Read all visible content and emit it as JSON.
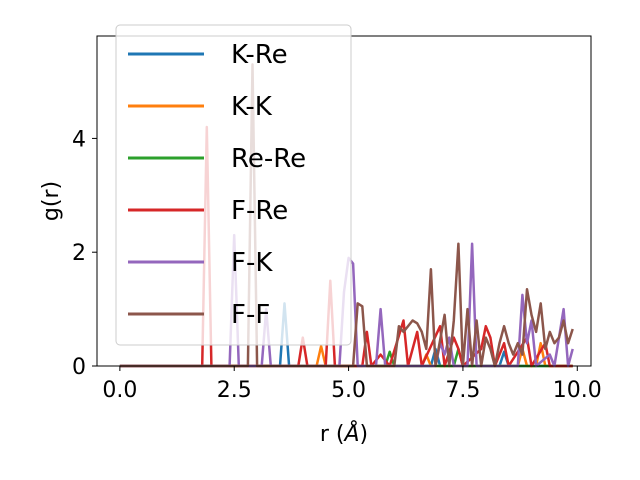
{
  "chart_data": {
    "type": "line",
    "xlabel": "r (",
    "xlabel_unit": "Å",
    "xlabel_close": ")",
    "ylabel": "g(r)",
    "xlim": [
      -0.5,
      10.3
    ],
    "ylim": [
      0,
      5.8
    ],
    "xticks": [
      0.0,
      2.5,
      5.0,
      7.5,
      10.0
    ],
    "xtick_labels": [
      "0.0",
      "2.5",
      "5.0",
      "7.5",
      "10.0"
    ],
    "yticks": [
      0,
      2,
      4
    ],
    "ytick_labels": [
      "0",
      "2",
      "4"
    ],
    "grid": false,
    "legend_position": "top-left",
    "series": [
      {
        "name": "K-Re",
        "color": "#1f77b4",
        "points": [
          [
            0,
            0
          ],
          [
            3.5,
            0
          ],
          [
            3.6,
            1.1
          ],
          [
            3.7,
            0
          ],
          [
            6.8,
            0
          ],
          [
            6.9,
            0.3
          ],
          [
            7.0,
            0
          ],
          [
            8.3,
            0
          ],
          [
            8.4,
            0.25
          ],
          [
            8.5,
            0
          ],
          [
            9.9,
            0
          ]
        ]
      },
      {
        "name": "K-K",
        "color": "#ff7f0e",
        "points": [
          [
            0,
            0
          ],
          [
            4.3,
            0
          ],
          [
            4.4,
            0.35
          ],
          [
            4.5,
            0
          ],
          [
            6.6,
            0
          ],
          [
            6.7,
            0.2
          ],
          [
            6.8,
            0
          ],
          [
            8.7,
            0
          ],
          [
            8.8,
            0.3
          ],
          [
            8.9,
            0
          ],
          [
            9.1,
            0
          ],
          [
            9.2,
            0.4
          ],
          [
            9.3,
            0
          ],
          [
            9.9,
            0
          ]
        ]
      },
      {
        "name": "Re-Re",
        "color": "#2ca02c",
        "points": [
          [
            0,
            0
          ],
          [
            5.8,
            0
          ],
          [
            5.9,
            0.25
          ],
          [
            6.0,
            0
          ],
          [
            7.3,
            0
          ],
          [
            7.4,
            0.3
          ],
          [
            7.5,
            0
          ],
          [
            9.9,
            0
          ]
        ]
      },
      {
        "name": "F-Re",
        "color": "#d62728",
        "points": [
          [
            0,
            0
          ],
          [
            1.8,
            0
          ],
          [
            1.9,
            4.2
          ],
          [
            2.0,
            0
          ],
          [
            3.9,
            0
          ],
          [
            4.0,
            0.5
          ],
          [
            4.1,
            0
          ],
          [
            4.5,
            0
          ],
          [
            4.6,
            1.5
          ],
          [
            4.7,
            0
          ],
          [
            5.3,
            0
          ],
          [
            5.4,
            0.6
          ],
          [
            5.5,
            0
          ],
          [
            5.7,
            0.2
          ],
          [
            5.9,
            0
          ],
          [
            6.2,
            0.8
          ],
          [
            6.3,
            0
          ],
          [
            6.5,
            0.6
          ],
          [
            6.6,
            0
          ],
          [
            7.0,
            0.7
          ],
          [
            7.1,
            0
          ],
          [
            7.3,
            0.5
          ],
          [
            7.4,
            0.3
          ],
          [
            7.5,
            0
          ],
          [
            7.9,
            0.3
          ],
          [
            8.0,
            0.7
          ],
          [
            8.1,
            0.5
          ],
          [
            8.2,
            0
          ],
          [
            8.4,
            0.4
          ],
          [
            8.5,
            0
          ],
          [
            8.9,
            0.5
          ],
          [
            9.0,
            0
          ],
          [
            9.3,
            0.4
          ],
          [
            9.4,
            0
          ],
          [
            9.9,
            0
          ]
        ]
      },
      {
        "name": "F-K",
        "color": "#9467bd",
        "points": [
          [
            0,
            0
          ],
          [
            2.4,
            0
          ],
          [
            2.5,
            2.3
          ],
          [
            2.6,
            0
          ],
          [
            3.1,
            0
          ],
          [
            3.2,
            1.0
          ],
          [
            3.3,
            0
          ],
          [
            4.8,
            0
          ],
          [
            4.9,
            1.3
          ],
          [
            5.0,
            1.9
          ],
          [
            5.1,
            1.8
          ],
          [
            5.2,
            0
          ],
          [
            5.6,
            0
          ],
          [
            5.7,
            1.0
          ],
          [
            5.8,
            0
          ],
          [
            6.9,
            0
          ],
          [
            7.0,
            0.4
          ],
          [
            7.1,
            0.2
          ],
          [
            7.2,
            0.5
          ],
          [
            7.3,
            0
          ],
          [
            7.6,
            0
          ],
          [
            7.7,
            2.15
          ],
          [
            7.8,
            0
          ],
          [
            8.7,
            0
          ],
          [
            8.8,
            1.25
          ],
          [
            8.9,
            0.4
          ],
          [
            9.0,
            0.8
          ],
          [
            9.1,
            0
          ],
          [
            9.4,
            0.2
          ],
          [
            9.5,
            0
          ],
          [
            9.7,
            1.0
          ],
          [
            9.8,
            0
          ],
          [
            9.9,
            0.3
          ]
        ]
      },
      {
        "name": "F-F",
        "color": "#8c564b",
        "points": [
          [
            0,
            0
          ],
          [
            2.8,
            0
          ],
          [
            2.9,
            5.3
          ],
          [
            3.0,
            0
          ],
          [
            5.1,
            0
          ],
          [
            5.2,
            1.1
          ],
          [
            5.3,
            1.05
          ],
          [
            5.4,
            0
          ],
          [
            6.0,
            0
          ],
          [
            6.1,
            0.7
          ],
          [
            6.2,
            0.6
          ],
          [
            6.4,
            0.8
          ],
          [
            6.5,
            0.75
          ],
          [
            6.6,
            0.6
          ],
          [
            6.7,
            0.3
          ],
          [
            6.8,
            1.7
          ],
          [
            6.9,
            0
          ],
          [
            7.1,
            0.9
          ],
          [
            7.2,
            0
          ],
          [
            7.3,
            0.8
          ],
          [
            7.4,
            2.15
          ],
          [
            7.5,
            0
          ],
          [
            7.6,
            1.0
          ],
          [
            7.7,
            0
          ],
          [
            7.8,
            0.8
          ],
          [
            7.9,
            0
          ],
          [
            8.0,
            0.5
          ],
          [
            8.1,
            0.3
          ],
          [
            8.2,
            0
          ],
          [
            8.3,
            0.4
          ],
          [
            8.4,
            0.7
          ],
          [
            8.5,
            0.4
          ],
          [
            8.6,
            0.2
          ],
          [
            8.7,
            0.4
          ],
          [
            8.8,
            0.2
          ],
          [
            8.9,
            1.35
          ],
          [
            9.0,
            0.9
          ],
          [
            9.1,
            0.6
          ],
          [
            9.2,
            1.1
          ],
          [
            9.3,
            0.3
          ],
          [
            9.4,
            0.6
          ],
          [
            9.5,
            0.4
          ],
          [
            9.6,
            0.5
          ],
          [
            9.7,
            0.8
          ],
          [
            9.8,
            0.4
          ],
          [
            9.9,
            0.65
          ]
        ]
      }
    ]
  }
}
